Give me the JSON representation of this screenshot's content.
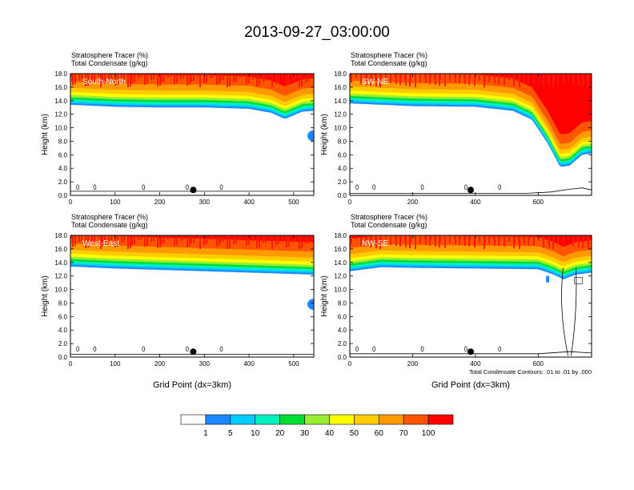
{
  "title": "2013-09-27_03:00:00",
  "colors": {
    "levels": [
      "#ffffff",
      "#1e88ff",
      "#00ccff",
      "#00f0c0",
      "#00dd33",
      "#99ee33",
      "#ffff00",
      "#ffcc00",
      "#ff9900",
      "#ff5500",
      "#ff0000"
    ]
  },
  "chart_data": [
    {
      "type": "heatmap",
      "panel_label": "South-North",
      "title_lines": [
        "Stratosphere Tracer   (%)",
        "Total Condensate   (g/kg)"
      ],
      "xlabel": "",
      "ylabel": "Height (km)",
      "xlim": [
        0,
        545
      ],
      "ylim": [
        0,
        18
      ],
      "xticks": [
        0,
        100,
        200,
        300,
        400,
        500
      ],
      "xtick_labels": [
        "0",
        "100",
        "200",
        "300",
        "400",
        "500"
      ],
      "yticks": [
        0,
        2,
        4,
        6,
        8,
        10,
        12,
        14,
        16,
        18
      ],
      "ytick_labels": [
        "0.0",
        "2.0",
        "4.0",
        "6.0",
        "8.0",
        "10.0",
        "12.0",
        "14.0",
        "16.0",
        "18.0"
      ],
      "tracer_level_km": [
        [
          0,
          15.2
        ],
        [
          100,
          14.9
        ],
        [
          200,
          14.8
        ],
        [
          300,
          14.8
        ],
        [
          400,
          14.6
        ],
        [
          450,
          14.0
        ],
        [
          480,
          13.1
        ],
        [
          520,
          14.2
        ],
        [
          545,
          14.3
        ]
      ],
      "marker": {
        "x": 275,
        "y": 0.8
      },
      "ground_km": [
        [
          0,
          0.6
        ],
        [
          545,
          0.6
        ]
      ]
    },
    {
      "type": "heatmap",
      "panel_label": "SW-NE",
      "title_lines": [
        "Stratosphere Tracer   (%)",
        "Total Condensate   (g/kg)"
      ],
      "xlabel": "",
      "ylabel": "Height (km)",
      "xlim": [
        0,
        770
      ],
      "ylim": [
        0,
        18
      ],
      "xticks": [
        0,
        200,
        400,
        600
      ],
      "xtick_labels": [
        "0",
        "200",
        "400",
        "600"
      ],
      "yticks": [
        0,
        2,
        4,
        6,
        8,
        10,
        12,
        14,
        16,
        18
      ],
      "ytick_labels": [
        "0.0",
        "2.0",
        "4.0",
        "6.0",
        "8.0",
        "10.0",
        "12.0",
        "14.0",
        "16.0",
        "18.0"
      ],
      "tracer_level_km": [
        [
          0,
          15.4
        ],
        [
          200,
          15.0
        ],
        [
          400,
          14.9
        ],
        [
          520,
          14.3
        ],
        [
          580,
          13.0
        ],
        [
          630,
          9.5
        ],
        [
          670,
          6.0
        ],
        [
          700,
          6.2
        ],
        [
          740,
          7.8
        ],
        [
          770,
          8.0
        ]
      ],
      "marker": {
        "x": 385,
        "y": 0.8
      },
      "ground_km": [
        [
          0,
          0.3
        ],
        [
          560,
          0.3
        ],
        [
          640,
          0.5
        ],
        [
          700,
          0.9
        ],
        [
          740,
          1.1
        ],
        [
          770,
          0.8
        ]
      ]
    },
    {
      "type": "heatmap",
      "panel_label": "West-East",
      "title_lines": [
        "Stratosphere Tracer   (%)",
        "Total Condensate   (g/kg)"
      ],
      "xlabel": "Grid Point (dx=3km)",
      "ylabel": "Height (km)",
      "xlim": [
        0,
        545
      ],
      "ylim": [
        0,
        18
      ],
      "xticks": [
        0,
        100,
        200,
        300,
        400,
        500
      ],
      "xtick_labels": [
        "0",
        "100",
        "200",
        "300",
        "400",
        "500"
      ],
      "yticks": [
        0,
        2,
        4,
        6,
        8,
        10,
        12,
        14,
        16,
        18
      ],
      "ytick_labels": [
        "0.0",
        "2.0",
        "4.0",
        "6.0",
        "8.0",
        "10.0",
        "12.0",
        "14.0",
        "16.0",
        "18.0"
      ],
      "tracer_level_km": [
        [
          0,
          15.2
        ],
        [
          100,
          14.9
        ],
        [
          200,
          14.7
        ],
        [
          300,
          14.5
        ],
        [
          400,
          14.3
        ],
        [
          545,
          14.0
        ]
      ],
      "marker": {
        "x": 275,
        "y": 0.8
      },
      "ground_km": [
        [
          0,
          0.4
        ],
        [
          545,
          0.4
        ]
      ]
    },
    {
      "type": "heatmap",
      "panel_label": "NW-SE",
      "title_lines": [
        "Stratosphere Tracer   (%)",
        "Total Condensate   (g/kg)"
      ],
      "xlabel": "Grid Point (dx=3km)",
      "ylabel": "Height (km)",
      "xlim": [
        0,
        770
      ],
      "ylim": [
        0,
        18
      ],
      "xticks": [
        0,
        200,
        400,
        600
      ],
      "xtick_labels": [
        "0",
        "200",
        "400",
        "600"
      ],
      "yticks": [
        0,
        2,
        4,
        6,
        8,
        10,
        12,
        14,
        16,
        18
      ],
      "ytick_labels": [
        "0.0",
        "2.0",
        "4.0",
        "6.0",
        "8.0",
        "10.0",
        "12.0",
        "14.0",
        "16.0",
        "18.0"
      ],
      "tracer_level_km": [
        [
          0,
          14.5
        ],
        [
          100,
          15.1
        ],
        [
          200,
          15.0
        ],
        [
          400,
          14.9
        ],
        [
          600,
          14.8
        ],
        [
          650,
          14.0
        ],
        [
          680,
          13.3
        ],
        [
          720,
          14.0
        ],
        [
          770,
          14.3
        ]
      ],
      "marker": {
        "x": 385,
        "y": 0.8
      },
      "ground_km": [
        [
          0,
          0.5
        ],
        [
          600,
          0.5
        ],
        [
          700,
          0.8
        ],
        [
          770,
          0.6
        ]
      ],
      "contour_note": "Total Condensate Contours: .01 to .01 by .000"
    }
  ],
  "colorbar": {
    "labels": [
      "1",
      "5",
      "10",
      "20",
      "30",
      "40",
      "50",
      "60",
      "70",
      "100"
    ]
  }
}
